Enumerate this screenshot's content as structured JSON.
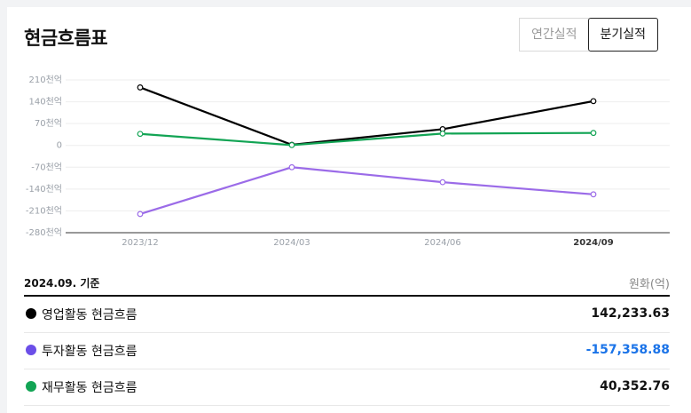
{
  "title": "현금흐름표",
  "tabs": [
    {
      "label": "연간실적",
      "active": false
    },
    {
      "label": "분기실적",
      "active": true
    }
  ],
  "colors": {
    "operating": "#000000",
    "investing": "#9b6be8",
    "financing": "#12a454",
    "investing_dot": "#6b4ee8",
    "negative_value": "#1a73e8"
  },
  "chart_data": {
    "type": "line",
    "x": [
      "2023/12",
      "2024/03",
      "2024/06",
      "2024/09"
    ],
    "highlight_x": "2024/09",
    "y_ticks": [
      "210천억",
      "140천억",
      "70천억",
      "0",
      "-70천억",
      "-140천억",
      "-210천억",
      "-280천억"
    ],
    "y_tick_values": [
      210,
      140,
      70,
      0,
      -70,
      -140,
      -210,
      -280
    ],
    "ylim": [
      -280,
      210
    ],
    "grid": true,
    "legend": "none",
    "series": [
      {
        "key": "operating",
        "values": [
          186,
          2,
          52,
          142
        ]
      },
      {
        "key": "investing",
        "values": [
          -220,
          -70,
          -118,
          -157
        ]
      },
      {
        "key": "financing",
        "values": [
          37,
          1,
          38,
          40
        ]
      }
    ]
  },
  "table": {
    "basis": "2024.09. 기준",
    "unit": "원화(억)",
    "rows": [
      {
        "key": "operating",
        "label": "영업활동 현금흐름",
        "value": "142,233.63",
        "negative": false
      },
      {
        "key": "investing",
        "label": "투자활동 현금흐름",
        "value": "-157,358.88",
        "negative": true
      },
      {
        "key": "financing",
        "label": "재무활동 현금흐름",
        "value": "40,352.76",
        "negative": false
      }
    ]
  }
}
